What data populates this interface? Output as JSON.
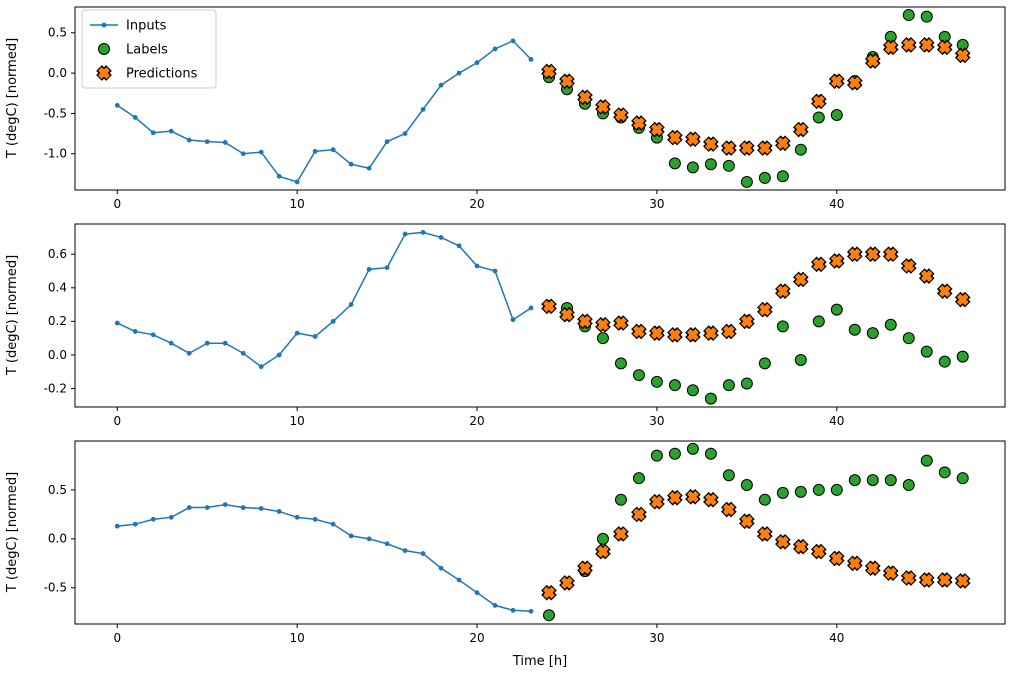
{
  "figure": {
    "background": "#ffffff"
  },
  "colors": {
    "inputs": "#1f77b4",
    "labels": "#2ca02c",
    "predictions": "#ff7f0e",
    "marker_edge": "#000000"
  },
  "legend": {
    "position": "upper left",
    "items": [
      {
        "label": "Inputs",
        "marker": "line-dot"
      },
      {
        "label": "Labels",
        "marker": "circle"
      },
      {
        "label": "Predictions",
        "marker": "x"
      }
    ]
  },
  "chart_data": [
    {
      "type": "line",
      "title": "",
      "ylabel": "T (degC) [normed]",
      "xlabel": "",
      "xlim": [
        -2.35,
        49.35
      ],
      "ylim": [
        -1.45,
        0.82
      ],
      "xticks": [
        0,
        10,
        20,
        30,
        40
      ],
      "xtick_labels": [
        "0",
        "10",
        "20",
        "30",
        "40"
      ],
      "yticks": [
        0.5,
        0.0,
        -0.5,
        -1.0
      ],
      "ytick_labels": [
        "0.5",
        "0.0",
        "-0.5",
        "-1.0"
      ],
      "grid": false,
      "series": [
        {
          "name": "Inputs",
          "type": "line",
          "x": [
            0,
            1,
            2,
            3,
            4,
            5,
            6,
            7,
            8,
            9,
            10,
            11,
            12,
            13,
            14,
            15,
            16,
            17,
            18,
            19,
            20,
            21,
            22,
            23
          ],
          "y": [
            -0.4,
            -0.55,
            -0.74,
            -0.72,
            -0.83,
            -0.85,
            -0.86,
            -1.0,
            -0.98,
            -1.28,
            -1.35,
            -0.97,
            -0.95,
            -1.13,
            -1.18,
            -0.85,
            -0.75,
            -0.45,
            -0.15,
            0.0,
            0.13,
            0.3,
            0.4,
            0.17
          ]
        },
        {
          "name": "Labels",
          "type": "scatter-circle",
          "x": [
            24,
            25,
            26,
            27,
            28,
            29,
            30,
            31,
            32,
            33,
            34,
            35,
            36,
            37,
            38,
            39,
            40,
            41,
            42,
            43,
            44,
            45,
            46,
            47
          ],
          "y": [
            -0.05,
            -0.2,
            -0.38,
            -0.5,
            -0.55,
            -0.68,
            -0.8,
            -1.12,
            -1.17,
            -1.13,
            -1.15,
            -1.35,
            -1.3,
            -1.28,
            -0.95,
            -0.55,
            -0.52,
            -0.1,
            0.2,
            0.45,
            0.72,
            0.7,
            0.45,
            0.35
          ]
        },
        {
          "name": "Predictions",
          "type": "scatter-x",
          "x": [
            24,
            25,
            26,
            27,
            28,
            29,
            30,
            31,
            32,
            33,
            34,
            35,
            36,
            37,
            38,
            39,
            40,
            41,
            42,
            43,
            44,
            45,
            46,
            47
          ],
          "y": [
            0.02,
            -0.1,
            -0.3,
            -0.42,
            -0.52,
            -0.62,
            -0.7,
            -0.8,
            -0.82,
            -0.88,
            -0.93,
            -0.93,
            -0.93,
            -0.87,
            -0.7,
            -0.35,
            -0.1,
            -0.12,
            0.15,
            0.32,
            0.35,
            0.35,
            0.32,
            0.22
          ]
        }
      ]
    },
    {
      "type": "line",
      "title": "",
      "ylabel": "T (degC) [normed]",
      "xlabel": "",
      "xlim": [
        -2.35,
        49.35
      ],
      "ylim": [
        -0.31,
        0.78
      ],
      "xticks": [
        0,
        10,
        20,
        30,
        40
      ],
      "xtick_labels": [
        "0",
        "10",
        "20",
        "30",
        "40"
      ],
      "yticks": [
        0.6,
        0.4,
        0.2,
        0.0,
        -0.2
      ],
      "ytick_labels": [
        "0.6",
        "0.4",
        "0.2",
        "0.0",
        "-0.2"
      ],
      "grid": false,
      "series": [
        {
          "name": "Inputs",
          "type": "line",
          "x": [
            0,
            1,
            2,
            3,
            4,
            5,
            6,
            7,
            8,
            9,
            10,
            11,
            12,
            13,
            14,
            15,
            16,
            17,
            18,
            19,
            20,
            21,
            22,
            23
          ],
          "y": [
            0.19,
            0.14,
            0.12,
            0.07,
            0.01,
            0.07,
            0.07,
            0.01,
            -0.07,
            0.0,
            0.13,
            0.11,
            0.2,
            0.3,
            0.51,
            0.52,
            0.72,
            0.73,
            0.7,
            0.65,
            0.53,
            0.5,
            0.21,
            0.28
          ]
        },
        {
          "name": "Labels",
          "type": "scatter-circle",
          "x": [
            24,
            25,
            26,
            27,
            28,
            29,
            30,
            31,
            32,
            33,
            34,
            35,
            36,
            37,
            38,
            39,
            40,
            41,
            42,
            43,
            44,
            45,
            46,
            47
          ],
          "y": [
            0.29,
            0.28,
            0.17,
            0.1,
            -0.05,
            -0.12,
            -0.16,
            -0.18,
            -0.21,
            -0.26,
            -0.18,
            -0.17,
            -0.05,
            0.17,
            -0.03,
            0.2,
            0.27,
            0.15,
            0.13,
            0.18,
            0.1,
            0.02,
            -0.04,
            -0.01
          ]
        },
        {
          "name": "Predictions",
          "type": "scatter-x",
          "x": [
            24,
            25,
            26,
            27,
            28,
            29,
            30,
            31,
            32,
            33,
            34,
            35,
            36,
            37,
            38,
            39,
            40,
            41,
            42,
            43,
            44,
            45,
            46,
            47
          ],
          "y": [
            0.29,
            0.24,
            0.2,
            0.18,
            0.19,
            0.14,
            0.13,
            0.12,
            0.12,
            0.13,
            0.14,
            0.2,
            0.27,
            0.38,
            0.45,
            0.54,
            0.56,
            0.6,
            0.6,
            0.6,
            0.53,
            0.47,
            0.38,
            0.33
          ]
        }
      ]
    },
    {
      "type": "line",
      "title": "",
      "ylabel": "T (degC) [normed]",
      "xlabel": "Time [h]",
      "xlim": [
        -2.35,
        49.35
      ],
      "ylim": [
        -0.87,
        1.0
      ],
      "xticks": [
        0,
        10,
        20,
        30,
        40
      ],
      "xtick_labels": [
        "0",
        "10",
        "20",
        "30",
        "40"
      ],
      "yticks": [
        0.5,
        0.0,
        -0.5
      ],
      "ytick_labels": [
        "0.5",
        "0.0",
        "-0.5"
      ],
      "grid": false,
      "series": [
        {
          "name": "Inputs",
          "type": "line",
          "x": [
            0,
            1,
            2,
            3,
            4,
            5,
            6,
            7,
            8,
            9,
            10,
            11,
            12,
            13,
            14,
            15,
            16,
            17,
            18,
            19,
            20,
            21,
            22,
            23
          ],
          "y": [
            0.13,
            0.15,
            0.2,
            0.22,
            0.32,
            0.32,
            0.35,
            0.32,
            0.31,
            0.28,
            0.22,
            0.2,
            0.15,
            0.03,
            0.0,
            -0.05,
            -0.12,
            -0.15,
            -0.3,
            -0.42,
            -0.55,
            -0.68,
            -0.73,
            -0.74
          ]
        },
        {
          "name": "Labels",
          "type": "scatter-circle",
          "x": [
            24,
            25,
            26,
            27,
            28,
            29,
            30,
            31,
            32,
            33,
            34,
            35,
            36,
            37,
            38,
            39,
            40,
            41,
            42,
            43,
            44,
            45,
            46,
            47
          ],
          "y": [
            -0.78,
            -0.45,
            -0.33,
            0.0,
            0.4,
            0.62,
            0.85,
            0.87,
            0.92,
            0.87,
            0.65,
            0.55,
            0.4,
            0.47,
            0.48,
            0.5,
            0.5,
            0.6,
            0.6,
            0.6,
            0.55,
            0.8,
            0.68,
            0.62
          ]
        },
        {
          "name": "Predictions",
          "type": "scatter-x",
          "x": [
            24,
            25,
            26,
            27,
            28,
            29,
            30,
            31,
            32,
            33,
            34,
            35,
            36,
            37,
            38,
            39,
            40,
            41,
            42,
            43,
            44,
            45,
            46,
            47
          ],
          "y": [
            -0.55,
            -0.45,
            -0.3,
            -0.13,
            0.05,
            0.25,
            0.38,
            0.42,
            0.43,
            0.4,
            0.3,
            0.18,
            0.05,
            -0.03,
            -0.08,
            -0.13,
            -0.2,
            -0.25,
            -0.3,
            -0.35,
            -0.4,
            -0.42,
            -0.42,
            -0.43
          ]
        }
      ]
    }
  ]
}
